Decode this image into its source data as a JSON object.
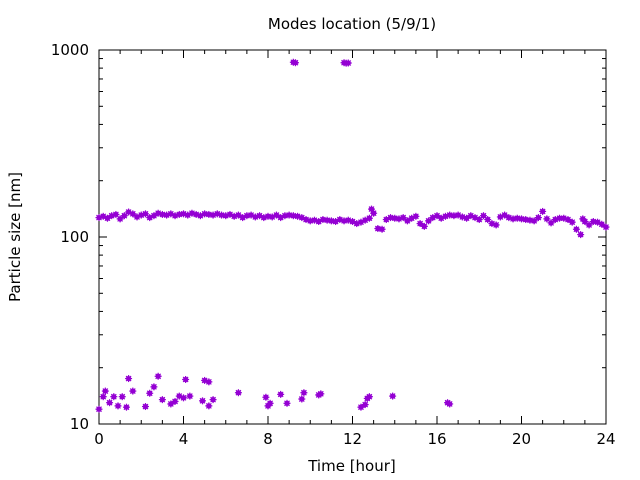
{
  "chart_data": {
    "type": "scatter",
    "title": "Modes location (5/9/1)",
    "xlabel": "Time [hour]",
    "ylabel": "Particle size [nm]",
    "xlim": [
      0,
      24
    ],
    "ylim": [
      10,
      1000
    ],
    "yscale": "log",
    "grid": false,
    "legend": "none",
    "marker_color": "#9400d3",
    "x_ticks": [
      0,
      4,
      8,
      12,
      16,
      20,
      24
    ],
    "x_tick_labels": [
      "0",
      "4",
      "8",
      "12",
      "16",
      "20",
      "24"
    ],
    "y_ticks": [
      10,
      100,
      1000
    ],
    "y_tick_labels": [
      "10",
      "100",
      "1000"
    ],
    "series": [
      {
        "values": [
          [
            0.0,
            127
          ],
          [
            0.2,
            129
          ],
          [
            0.4,
            126
          ],
          [
            0.6,
            130
          ],
          [
            0.8,
            132
          ],
          [
            1.0,
            125
          ],
          [
            1.2,
            130
          ],
          [
            1.4,
            136
          ],
          [
            1.6,
            133
          ],
          [
            1.8,
            128
          ],
          [
            2.0,
            131
          ],
          [
            2.2,
            133
          ],
          [
            2.4,
            127
          ],
          [
            2.6,
            130
          ],
          [
            2.8,
            134
          ],
          [
            3.0,
            132
          ],
          [
            3.2,
            131
          ],
          [
            3.4,
            133
          ],
          [
            3.6,
            130
          ],
          [
            3.8,
            132
          ],
          [
            4.0,
            133
          ],
          [
            4.2,
            131
          ],
          [
            4.4,
            134
          ],
          [
            4.6,
            132
          ],
          [
            4.8,
            130
          ],
          [
            5.0,
            133
          ],
          [
            5.2,
            132
          ],
          [
            5.4,
            131
          ],
          [
            5.6,
            133
          ],
          [
            5.8,
            131
          ],
          [
            6.0,
            130
          ],
          [
            6.2,
            132
          ],
          [
            6.4,
            129
          ],
          [
            6.6,
            131
          ],
          [
            6.8,
            127
          ],
          [
            7.0,
            130
          ],
          [
            7.2,
            131
          ],
          [
            7.4,
            128
          ],
          [
            7.6,
            130
          ],
          [
            7.8,
            127
          ],
          [
            8.0,
            129
          ],
          [
            8.2,
            128
          ],
          [
            8.4,
            131
          ],
          [
            8.6,
            127
          ],
          [
            8.8,
            130
          ],
          [
            9.0,
            131
          ],
          [
            9.2,
            130
          ],
          [
            9.4,
            129
          ],
          [
            9.6,
            127
          ],
          [
            9.8,
            124
          ],
          [
            10.0,
            122
          ],
          [
            10.2,
            123
          ],
          [
            10.4,
            121
          ],
          [
            10.6,
            124
          ],
          [
            10.8,
            123
          ],
          [
            11.0,
            122
          ],
          [
            11.2,
            121
          ],
          [
            11.4,
            124
          ],
          [
            11.6,
            122
          ],
          [
            11.8,
            123
          ],
          [
            12.0,
            121
          ],
          [
            12.2,
            118
          ],
          [
            12.4,
            120
          ],
          [
            12.6,
            123
          ],
          [
            12.8,
            126
          ],
          [
            12.9,
            141
          ],
          [
            13.0,
            134
          ],
          [
            13.2,
            111
          ],
          [
            13.4,
            110
          ],
          [
            13.6,
            124
          ],
          [
            13.8,
            127
          ],
          [
            14.0,
            126
          ],
          [
            14.2,
            125
          ],
          [
            14.4,
            127
          ],
          [
            14.6,
            122
          ],
          [
            14.8,
            126
          ],
          [
            15.0,
            129
          ],
          [
            15.2,
            118
          ],
          [
            15.4,
            114
          ],
          [
            15.6,
            122
          ],
          [
            15.8,
            127
          ],
          [
            16.0,
            130
          ],
          [
            16.2,
            126
          ],
          [
            16.4,
            129
          ],
          [
            16.6,
            131
          ],
          [
            16.8,
            130
          ],
          [
            17.0,
            131
          ],
          [
            17.2,
            128
          ],
          [
            17.4,
            126
          ],
          [
            17.6,
            130
          ],
          [
            17.8,
            127
          ],
          [
            18.0,
            124
          ],
          [
            18.2,
            130
          ],
          [
            18.4,
            124
          ],
          [
            18.6,
            118
          ],
          [
            18.8,
            116
          ],
          [
            19.0,
            128
          ],
          [
            19.2,
            131
          ],
          [
            19.4,
            127
          ],
          [
            19.6,
            125
          ],
          [
            19.8,
            126
          ],
          [
            20.0,
            125
          ],
          [
            20.2,
            124
          ],
          [
            20.4,
            123
          ],
          [
            20.6,
            122
          ],
          [
            20.8,
            127
          ],
          [
            21.0,
            137
          ],
          [
            21.2,
            125
          ],
          [
            21.4,
            119
          ],
          [
            21.6,
            124
          ],
          [
            21.8,
            126
          ],
          [
            22.0,
            126
          ],
          [
            22.2,
            124
          ],
          [
            22.4,
            120
          ],
          [
            22.6,
            110
          ],
          [
            22.8,
            103
          ],
          [
            22.9,
            125
          ],
          [
            23.0,
            121
          ],
          [
            23.2,
            116
          ],
          [
            23.4,
            121
          ],
          [
            23.6,
            120
          ],
          [
            23.8,
            117
          ],
          [
            24.0,
            113
          ],
          [
            9.2,
            860
          ],
          [
            9.3,
            855
          ],
          [
            11.6,
            855
          ],
          [
            11.7,
            850
          ],
          [
            11.8,
            852
          ],
          [
            0.0,
            12
          ],
          [
            0.2,
            14
          ],
          [
            0.3,
            15
          ],
          [
            0.5,
            13
          ],
          [
            0.7,
            14
          ],
          [
            0.9,
            12.5
          ],
          [
            1.1,
            14
          ],
          [
            1.3,
            12.3
          ],
          [
            1.4,
            17.5
          ],
          [
            1.6,
            15
          ],
          [
            2.2,
            12.4
          ],
          [
            2.4,
            14.6
          ],
          [
            2.6,
            15.8
          ],
          [
            2.8,
            18
          ],
          [
            3.0,
            13.5
          ],
          [
            3.4,
            12.8
          ],
          [
            3.6,
            13.2
          ],
          [
            3.8,
            14.1
          ],
          [
            4.0,
            13.8
          ],
          [
            4.1,
            17.3
          ],
          [
            4.3,
            14.1
          ],
          [
            4.9,
            13.3
          ],
          [
            5.0,
            17.1
          ],
          [
            5.2,
            12.5
          ],
          [
            5.2,
            16.8
          ],
          [
            5.4,
            13.5
          ],
          [
            6.6,
            14.7
          ],
          [
            7.9,
            13.9
          ],
          [
            8.0,
            12.5
          ],
          [
            8.1,
            12.9
          ],
          [
            8.6,
            14.4
          ],
          [
            8.9,
            12.9
          ],
          [
            9.6,
            13.6
          ],
          [
            9.7,
            14.7
          ],
          [
            10.4,
            14.3
          ],
          [
            10.5,
            14.5
          ],
          [
            12.4,
            12.3
          ],
          [
            12.6,
            12.7
          ],
          [
            12.7,
            13.7
          ],
          [
            12.8,
            14.0
          ],
          [
            13.9,
            14.1
          ],
          [
            16.5,
            13.0
          ],
          [
            16.6,
            12.8
          ]
        ]
      }
    ]
  }
}
